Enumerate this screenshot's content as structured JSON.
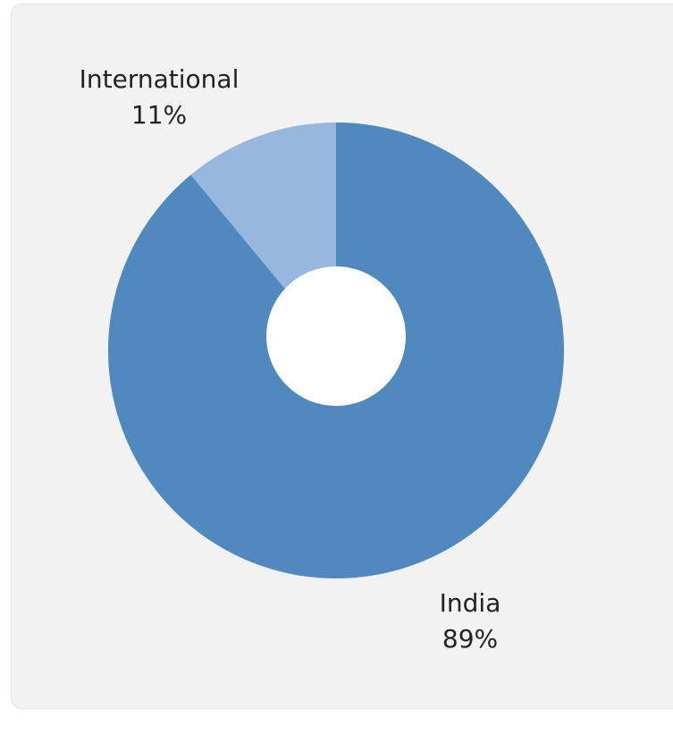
{
  "chart_data": {
    "type": "pie",
    "donut": true,
    "title": "",
    "slices": [
      {
        "label": "India",
        "value": 89,
        "value_label": "89%",
        "color": "#4f89bd"
      },
      {
        "label": "International",
        "value": 11,
        "value_label": "11%",
        "color": "#98b7df"
      }
    ]
  }
}
